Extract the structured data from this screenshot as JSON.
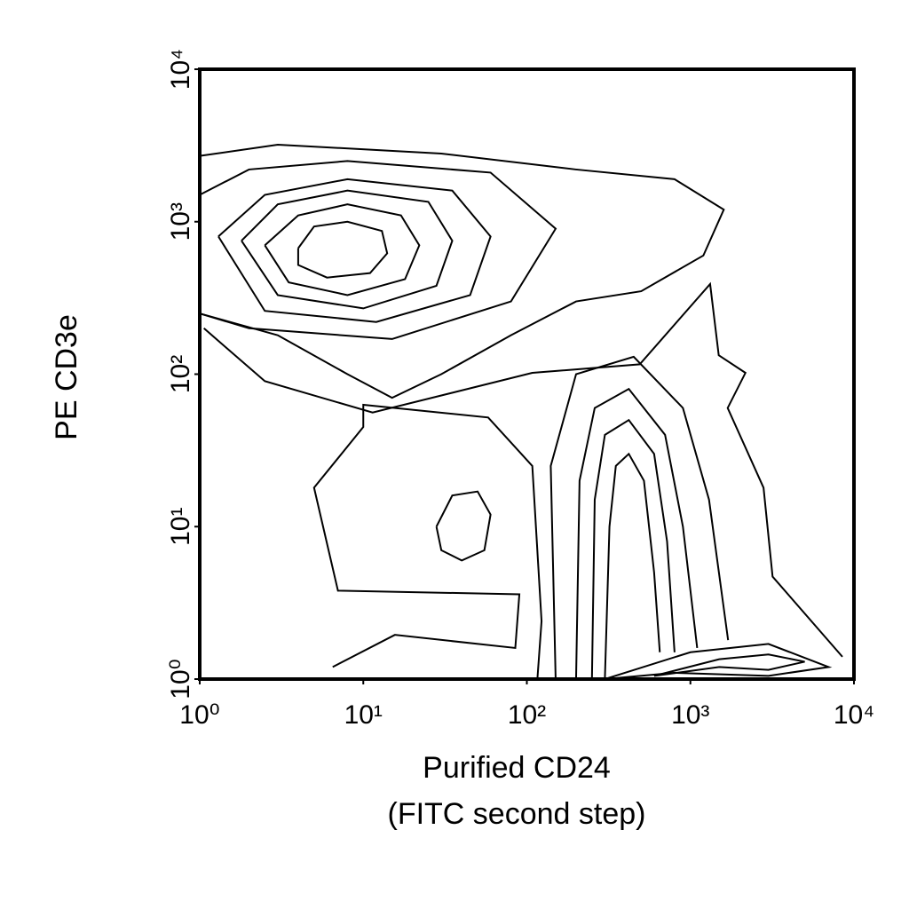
{
  "chart_data": {
    "type": "contour",
    "xlabel": [
      "Purified CD24",
      "(FITC second step)"
    ],
    "ylabel": "PE CD3e",
    "log_x": true,
    "log_y": true,
    "color": "#000000",
    "xlim": [
      1,
      10000
    ],
    "ylim": [
      1,
      10000
    ],
    "xticks": [
      {
        "value": 1,
        "label": "10⁰"
      },
      {
        "value": 10,
        "label": "10¹"
      },
      {
        "value": 100,
        "label": "10²"
      },
      {
        "value": 1000,
        "label": "10³"
      },
      {
        "value": 10000,
        "label": "10⁴"
      }
    ],
    "yticks": [
      {
        "value": 1,
        "label": "10⁰"
      },
      {
        "value": 10,
        "label": "10¹"
      },
      {
        "value": 100,
        "label": "10²"
      },
      {
        "value": 1000,
        "label": "10³"
      },
      {
        "value": 10000,
        "label": "10⁴"
      }
    ],
    "contours": [
      {
        "x": [
          4,
          5,
          8,
          13,
          14,
          11,
          6,
          4,
          4
        ],
        "y": [
          670,
          930,
          1000,
          870,
          620,
          460,
          430,
          520,
          670
        ]
      },
      {
        "x": [
          2.5,
          4,
          8,
          17,
          22,
          18,
          8,
          3.5,
          2.5
        ],
        "y": [
          700,
          1100,
          1300,
          1100,
          700,
          420,
          330,
          400,
          700
        ]
      },
      {
        "x": [
          1.8,
          3,
          8,
          25,
          35,
          28,
          10,
          3,
          1.8
        ],
        "y": [
          750,
          1300,
          1600,
          1350,
          750,
          380,
          270,
          330,
          750
        ]
      },
      {
        "x": [
          1.3,
          2.5,
          8,
          35,
          60,
          45,
          12,
          2.5,
          1.3
        ],
        "y": [
          800,
          1500,
          1900,
          1600,
          800,
          330,
          220,
          260,
          800
        ]
      },
      {
        "x": [
          1,
          2,
          8,
          60,
          150,
          80,
          15,
          2,
          1
        ],
        "y": [
          1500,
          2200,
          2500,
          2100,
          900,
          300,
          170,
          200,
          250
        ]
      },
      {
        "x": [
          1,
          3,
          30,
          200,
          800,
          1600,
          1200,
          500,
          200,
          80,
          30,
          15,
          8,
          3,
          1
        ],
        "y": [
          2700,
          3200,
          2800,
          2200,
          1900,
          1200,
          600,
          350,
          300,
          180,
          100,
          70,
          100,
          180,
          250
        ]
      },
      {
        "x": [
          1.06,
          2.5,
          11.4,
          108,
          490,
          1320,
          1490,
          2170,
          1690,
          2800,
          3180,
          8500
        ],
        "y": [
          200,
          90,
          56,
          102,
          116,
          390,
          133,
          102,
          60,
          18,
          4.7,
          1.4
        ]
      },
      {
        "x": [
          6.5,
          15.6,
          85,
          90,
          7,
          5,
          10,
          10,
          58,
          108,
          123,
          116
        ],
        "y": [
          1.2,
          1.95,
          1.6,
          3.6,
          3.8,
          18,
          45,
          63,
          52,
          25,
          2.4,
          1
        ]
      },
      {
        "x": [
          28,
          35,
          50,
          60,
          55,
          40,
          30,
          28
        ],
        "y": [
          10,
          16,
          17,
          12,
          7,
          6,
          7,
          10
        ]
      },
      {
        "x": [
          300,
          320,
          350,
          420,
          520,
          600,
          650
        ],
        "y": [
          1,
          10,
          25,
          30,
          20,
          5,
          1.5
        ]
      },
      {
        "x": [
          250,
          260,
          300,
          420,
          600,
          720,
          800
        ],
        "y": [
          1,
          15,
          40,
          50,
          30,
          8,
          1.5
        ]
      },
      {
        "x": [
          200,
          210,
          260,
          420,
          700,
          900,
          1100
        ],
        "y": [
          1,
          20,
          60,
          80,
          40,
          10,
          1.6
        ]
      },
      {
        "x": [
          150,
          140,
          200,
          450,
          900,
          1300,
          1700
        ],
        "y": [
          1,
          25,
          100,
          130,
          60,
          15,
          1.8
        ]
      },
      {
        "x": [
          300,
          1000,
          3000,
          7000,
          3000,
          800,
          300
        ],
        "y": [
          1,
          1.5,
          1.7,
          1.2,
          1.05,
          1.1,
          1
        ]
      },
      {
        "x": [
          600,
          1500,
          3000,
          5000,
          3000,
          1500,
          600
        ],
        "y": [
          1.05,
          1.35,
          1.45,
          1.3,
          1.15,
          1.2,
          1.05
        ]
      }
    ]
  }
}
